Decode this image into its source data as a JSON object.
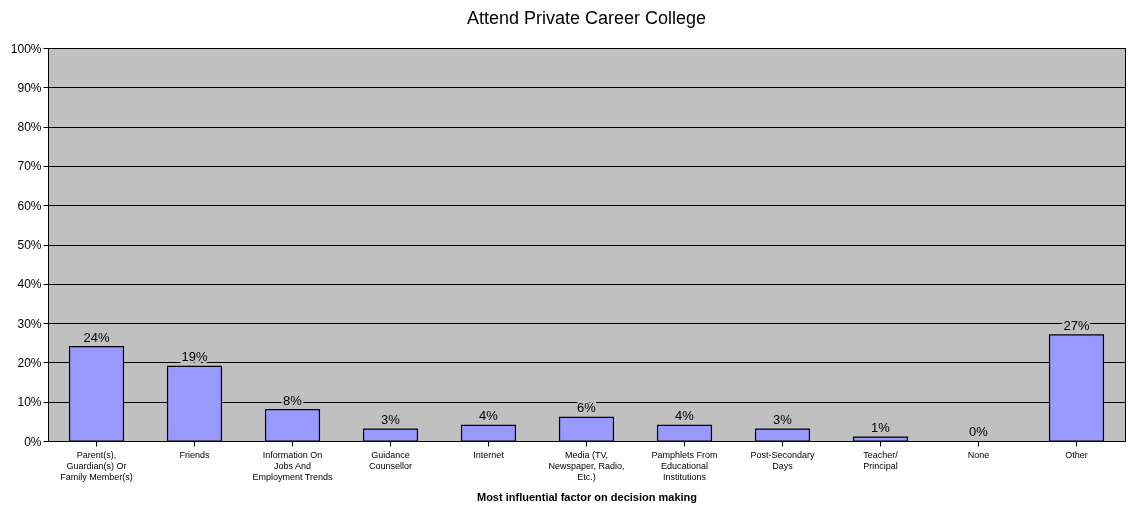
{
  "chart_data": {
    "type": "bar",
    "title": "Attend Private Career College",
    "xlabel": "Most influential factor on decision making",
    "categories": [
      "Parent(s), Guardian(s) Or Family Member(s)",
      "Friends",
      "Information On Jobs And Employment Trends",
      "Guidance Counsellor",
      "Internet",
      "Media (TV, Newspaper, Radio, Etc.)",
      "Pamphlets From Educational Institutions",
      "Post-Secondary Days",
      "Teacher/ Principal",
      "None",
      "Other"
    ],
    "values": [
      24,
      19,
      8,
      3,
      4,
      6,
      4,
      3,
      1,
      0,
      27
    ],
    "value_labels": [
      "24%",
      "19%",
      "8%",
      "3%",
      "4%",
      "6%",
      "4%",
      "3%",
      "1%",
      "0%",
      "27%"
    ],
    "color": "#9999ff",
    "ylim": [
      0,
      100
    ],
    "yticks": [
      {
        "value": 0,
        "label": "0%"
      },
      {
        "value": 10,
        "label": "10%"
      },
      {
        "value": 20,
        "label": "20%"
      },
      {
        "value": 30,
        "label": "30%"
      },
      {
        "value": 40,
        "label": "40%"
      },
      {
        "value": 50,
        "label": "50%"
      },
      {
        "value": 60,
        "label": "60%"
      },
      {
        "value": 70,
        "label": "70%"
      },
      {
        "value": 80,
        "label": "80%"
      },
      {
        "value": 90,
        "label": "90%"
      },
      {
        "value": 100,
        "label": "100%"
      }
    ],
    "grid": "y"
  }
}
